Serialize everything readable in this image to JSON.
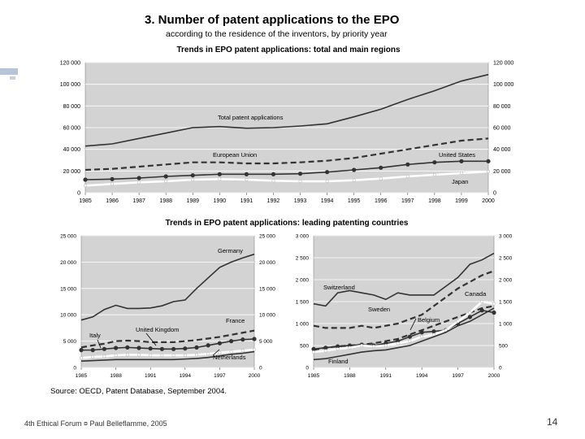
{
  "slide": {
    "title": "3. Number of patent applications to the EPO",
    "subtitle": "according to the residence of the inventors, by priority year",
    "source": "Source: OECD, Patent Database, September 2004.",
    "footer_left": "4th Ethical Forum ¤ Paul Belleflamme, 2005",
    "page_number": "14"
  },
  "chart_data": [
    {
      "type": "line",
      "title": "Trends in EPO patent applications: total and main regions",
      "x": [
        1985,
        1986,
        1987,
        1988,
        1989,
        1990,
        1991,
        1992,
        1993,
        1994,
        1995,
        1996,
        1997,
        1998,
        1999,
        2000
      ],
      "x_tick_labels": [
        "1985",
        "1986",
        "1987",
        "1988",
        "1989",
        "1990",
        "1991",
        "1992",
        "1993",
        "1994",
        "1995",
        "1996",
        "1997",
        "1998",
        "1999",
        "2000"
      ],
      "ylim": [
        0,
        120000
      ],
      "y_ticks": [
        0,
        20000,
        40000,
        60000,
        80000,
        100000,
        120000
      ],
      "y_tick_labels": [
        "0",
        "20 000",
        "40 000",
        "60 000",
        "80 000",
        "100 000",
        "120 000"
      ],
      "grid": true,
      "series": [
        {
          "name": "Total patent applications",
          "style": "solid",
          "color": "#333333",
          "values": [
            43000,
            45000,
            50000,
            55000,
            60000,
            61000,
            59500,
            60000,
            61500,
            63500,
            70000,
            77000,
            86000,
            94000,
            103000,
            109000
          ]
        },
        {
          "name": "European Union",
          "style": "dashed",
          "color": "#333333",
          "values": [
            21000,
            22000,
            24000,
            26000,
            28000,
            28000,
            27000,
            27000,
            28000,
            29500,
            32000,
            36000,
            40000,
            44000,
            48000,
            50000
          ]
        },
        {
          "name": "United States",
          "style": "solid-dots",
          "color": "#333333",
          "values": [
            12000,
            12500,
            13500,
            15000,
            16000,
            17000,
            17000,
            17000,
            17500,
            19000,
            21000,
            23000,
            26000,
            28000,
            29000,
            29000
          ]
        },
        {
          "name": "Japan",
          "style": "white",
          "color": "#ffffff",
          "values": [
            6500,
            8000,
            9500,
            10500,
            12000,
            12500,
            12000,
            11000,
            10500,
            10500,
            11500,
            13000,
            15000,
            16500,
            18000,
            19500
          ]
        }
      ]
    },
    {
      "type": "line",
      "title": "Trends in EPO patent applications: leading patenting countries",
      "x": [
        1985,
        1986,
        1987,
        1988,
        1989,
        1990,
        1991,
        1992,
        1993,
        1994,
        1995,
        1996,
        1997,
        1998,
        1999,
        2000
      ],
      "x_tick_labels": [
        "1985",
        "1988",
        "1991",
        "1994",
        "1997",
        "2000"
      ],
      "ylim": [
        0,
        25000
      ],
      "y_ticks": [
        0,
        5000,
        10000,
        15000,
        20000,
        25000
      ],
      "y_tick_labels": [
        "0",
        "5 000",
        "10 000",
        "15 000",
        "20 000",
        "25 000"
      ],
      "grid": true,
      "series": [
        {
          "name": "Germany",
          "style": "solid",
          "color": "#333333",
          "values": [
            9000,
            9600,
            11000,
            11800,
            11200,
            11200,
            11300,
            11700,
            12500,
            12800,
            15000,
            17000,
            19000,
            20000,
            20800,
            21500
          ]
        },
        {
          "name": "France",
          "style": "dashed",
          "color": "#333333",
          "values": [
            3800,
            4200,
            4500,
            5000,
            5100,
            5000,
            4800,
            4800,
            4800,
            5000,
            5200,
            5500,
            5800,
            6200,
            6600,
            7000
          ]
        },
        {
          "name": "United Kingdom",
          "style": "solid-dots",
          "color": "#333333",
          "values": [
            3300,
            3300,
            3500,
            3700,
            3800,
            3700,
            3600,
            3500,
            3500,
            3600,
            3800,
            4200,
            4600,
            5000,
            5300,
            5400
          ]
        },
        {
          "name": "Italy",
          "style": "white",
          "color": "#ffffff",
          "values": [
            1800,
            2000,
            2100,
            2300,
            2400,
            2400,
            2300,
            2300,
            2300,
            2300,
            2400,
            2600,
            2800,
            3000,
            3200,
            3400
          ]
        },
        {
          "name": "Netherlands",
          "style": "solid",
          "color": "#333333",
          "values": [
            1200,
            1300,
            1400,
            1500,
            1500,
            1500,
            1500,
            1500,
            1500,
            1600,
            1700,
            1900,
            2200,
            2500,
            2700,
            3000
          ]
        }
      ]
    },
    {
      "type": "line",
      "x": [
        1985,
        1986,
        1987,
        1988,
        1989,
        1990,
        1991,
        1992,
        1993,
        1994,
        1995,
        1996,
        1997,
        1998,
        1999,
        2000
      ],
      "x_tick_labels": [
        "1985",
        "1988",
        "1991",
        "1994",
        "1997",
        "2000"
      ],
      "ylim": [
        0,
        3000
      ],
      "y_ticks": [
        0,
        500,
        1000,
        1500,
        2000,
        2500,
        3000
      ],
      "y_tick_labels": [
        "0",
        "500",
        "1 000",
        "1 500",
        "2 000",
        "2 500",
        "3 000"
      ],
      "grid": true,
      "series": [
        {
          "name": "Switzerland",
          "style": "solid",
          "color": "#333333",
          "values": [
            1450,
            1400,
            1700,
            1750,
            1700,
            1650,
            1550,
            1700,
            1650,
            1650,
            1650,
            1850,
            2050,
            2350,
            2450,
            2600
          ]
        },
        {
          "name": "Canada",
          "style": "dashed",
          "color": "#333333",
          "values": [
            950,
            900,
            900,
            900,
            950,
            900,
            950,
            1000,
            1100,
            1200,
            1400,
            1600,
            1800,
            1950,
            2100,
            2200
          ]
        },
        {
          "name": "Sweden",
          "style": "dashed",
          "color": "#333333",
          "values": [
            400,
            450,
            480,
            500,
            520,
            550,
            600,
            650,
            750,
            850,
            950,
            1050,
            1150,
            1250,
            1350,
            1400
          ]
        },
        {
          "name": "Belgium",
          "style": "solid-dots",
          "color": "#333333",
          "values": [
            420,
            450,
            480,
            500,
            520,
            500,
            550,
            600,
            700,
            800,
            820,
            850,
            1000,
            1150,
            1300,
            1250
          ]
        },
        {
          "name": "",
          "style": "white",
          "color": "#ffffff",
          "values": [
            350,
            380,
            420,
            450,
            500,
            480,
            500,
            550,
            600,
            700,
            750,
            850,
            1050,
            1250,
            1500,
            1450
          ]
        },
        {
          "name": "Finland",
          "style": "solid",
          "color": "#333333",
          "values": [
            180,
            200,
            250,
            300,
            350,
            380,
            400,
            450,
            500,
            600,
            700,
            800,
            950,
            1050,
            1200,
            1350
          ]
        }
      ]
    }
  ]
}
